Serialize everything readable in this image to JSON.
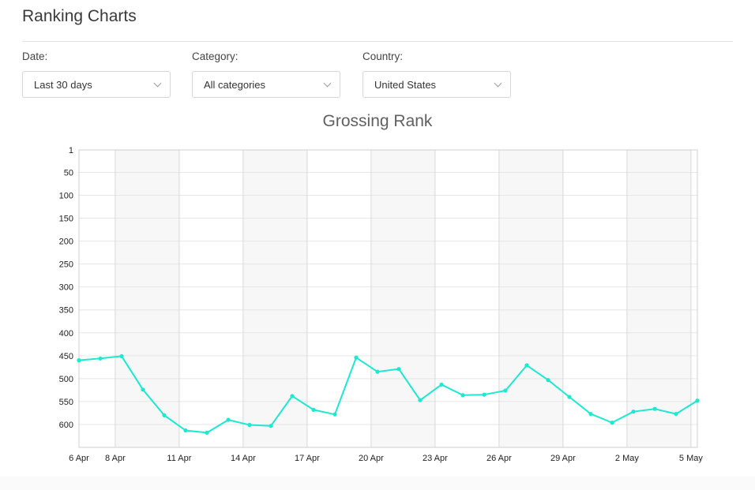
{
  "page": {
    "title": "Ranking Charts"
  },
  "filters": [
    {
      "label": "Date:",
      "value": "Last 30 days"
    },
    {
      "label": "Category:",
      "value": "All categories"
    },
    {
      "label": "Country:",
      "value": "United States"
    }
  ],
  "chart_data": {
    "type": "line",
    "title": "Grossing Rank",
    "xlabel": "",
    "ylabel": "",
    "y_reversed": true,
    "ylim": [
      1,
      650
    ],
    "y_ticks": [
      1,
      50,
      100,
      150,
      200,
      250,
      300,
      350,
      400,
      450,
      500,
      550,
      600
    ],
    "x_tick_labels": [
      "6 Apr",
      "8 Apr",
      "11 Apr",
      "14 Apr",
      "17 Apr",
      "20 Apr",
      "23 Apr",
      "26 Apr",
      "29 Apr",
      "2 May",
      "5 May"
    ],
    "x_tick_days": [
      0,
      1.7,
      4.7,
      7.7,
      10.7,
      13.7,
      16.7,
      19.7,
      22.7,
      25.7,
      28.7
    ],
    "shaded_bands": [
      [
        1.7,
        4.7
      ],
      [
        7.7,
        10.7
      ],
      [
        13.7,
        16.7
      ],
      [
        19.7,
        22.7
      ],
      [
        25.7,
        28.7
      ]
    ],
    "grid": true,
    "line_color": "#1de9d1",
    "series": [
      {
        "x": [
          0,
          1,
          2,
          3,
          4,
          5,
          6,
          7,
          8,
          9,
          10,
          11,
          12,
          13,
          14,
          15,
          16,
          17,
          18,
          19,
          20,
          21,
          22,
          23,
          24,
          25,
          26,
          27,
          28,
          29
        ],
        "values": [
          460,
          456,
          451,
          524,
          580,
          613,
          618,
          590,
          601,
          603,
          538,
          568,
          578,
          454,
          485,
          479,
          547,
          513,
          536,
          535,
          526,
          471,
          503,
          540,
          577,
          596,
          572,
          566,
          577,
          548
        ]
      }
    ]
  }
}
